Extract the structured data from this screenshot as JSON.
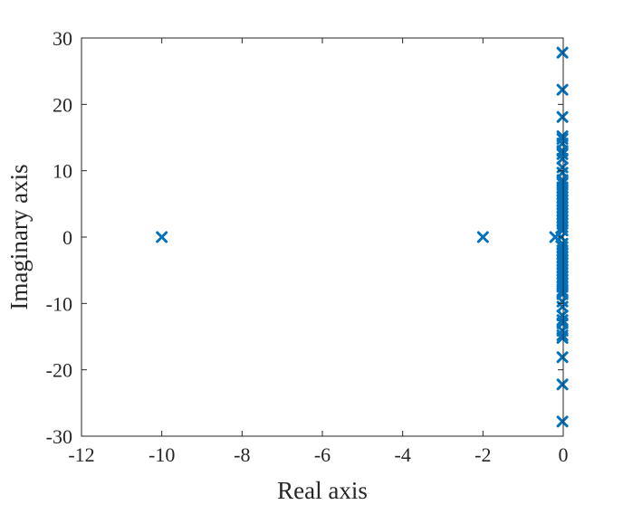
{
  "chart_data": {
    "type": "scatter",
    "title": "",
    "xlabel": "Real axis",
    "ylabel": "Imaginary axis",
    "xlim": [
      -12,
      0
    ],
    "ylim": [
      -30,
      30
    ],
    "xticks": [
      -12,
      -10,
      -8,
      -6,
      -4,
      -2,
      0
    ],
    "yticks": [
      -30,
      -20,
      -10,
      0,
      10,
      20,
      30
    ],
    "xtick_labels": [
      "-12",
      "-10",
      "-8",
      "-6",
      "-4",
      "-2",
      "0"
    ],
    "ytick_labels": [
      "-30",
      "-20",
      "-10",
      "0",
      "10",
      "20",
      "30"
    ],
    "grid": false,
    "marker": "x",
    "color": "#0072BD",
    "points": [
      [
        -10,
        0
      ],
      [
        -2,
        0
      ],
      [
        -0.2,
        0
      ],
      [
        -0.05,
        0
      ],
      [
        -0.02,
        27.8
      ],
      [
        -0.02,
        22.2
      ],
      [
        -0.02,
        18.1
      ],
      [
        -0.02,
        15.2
      ],
      [
        -0.02,
        14.8
      ],
      [
        -0.02,
        14.1
      ],
      [
        -0.02,
        13.0
      ],
      [
        -0.02,
        12.5
      ],
      [
        -0.02,
        11.8
      ],
      [
        -0.02,
        10.5
      ],
      [
        -0.02,
        9.7
      ],
      [
        -0.02,
        8.6
      ],
      [
        -0.02,
        8.1
      ],
      [
        -0.02,
        7.5
      ],
      [
        -0.02,
        7.0
      ],
      [
        -0.02,
        6.5
      ],
      [
        -0.02,
        6.0
      ],
      [
        -0.02,
        5.5
      ],
      [
        -0.02,
        5.0
      ],
      [
        -0.02,
        4.5
      ],
      [
        -0.02,
        4.0
      ],
      [
        -0.02,
        3.5
      ],
      [
        -0.02,
        3.0
      ],
      [
        -0.02,
        2.5
      ],
      [
        -0.02,
        2.0
      ],
      [
        -0.02,
        1.5
      ],
      [
        -0.02,
        1.0
      ],
      [
        -0.02,
        -27.8
      ],
      [
        -0.02,
        -22.2
      ],
      [
        -0.02,
        -18.1
      ],
      [
        -0.02,
        -15.2
      ],
      [
        -0.02,
        -14.8
      ],
      [
        -0.02,
        -14.1
      ],
      [
        -0.02,
        -13.0
      ],
      [
        -0.02,
        -12.5
      ],
      [
        -0.02,
        -11.8
      ],
      [
        -0.02,
        -10.5
      ],
      [
        -0.02,
        -9.7
      ],
      [
        -0.02,
        -8.6
      ],
      [
        -0.02,
        -8.1
      ],
      [
        -0.02,
        -7.5
      ],
      [
        -0.02,
        -7.0
      ],
      [
        -0.02,
        -6.5
      ],
      [
        -0.02,
        -6.0
      ],
      [
        -0.02,
        -5.5
      ],
      [
        -0.02,
        -5.0
      ],
      [
        -0.02,
        -4.5
      ],
      [
        -0.02,
        -4.0
      ],
      [
        -0.02,
        -3.5
      ],
      [
        -0.02,
        -3.0
      ],
      [
        -0.02,
        -2.5
      ],
      [
        -0.02,
        -2.0
      ],
      [
        -0.02,
        -1.5
      ],
      [
        -0.02,
        -1.0
      ]
    ]
  }
}
